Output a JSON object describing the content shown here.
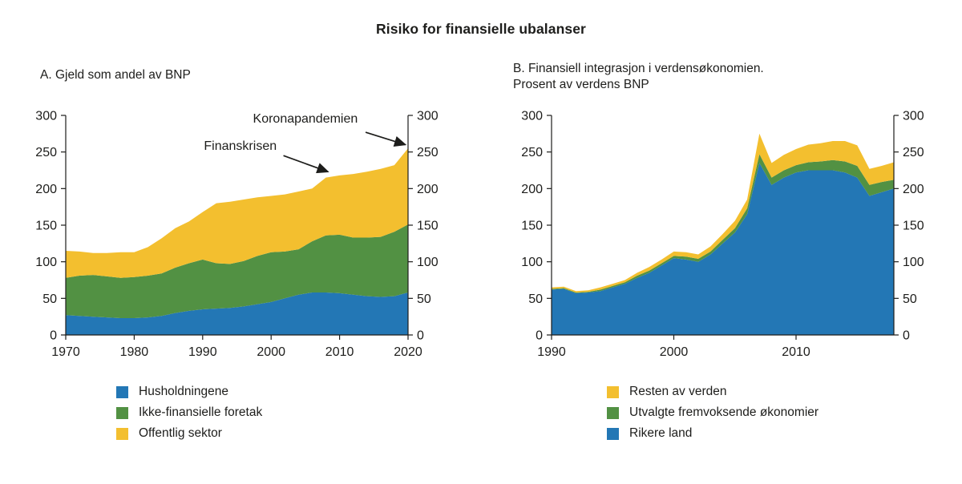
{
  "title": "Risiko for finansielle ubalanser",
  "panels": [
    {
      "lines": [
        "A. Gjeld som andel av BNP"
      ]
    },
    {
      "lines": [
        "B.  Finansiell integrasjon i verdensøkonomien.",
        "Prosent av verdens BNP"
      ]
    }
  ],
  "colors": {
    "blue": "#2377b5",
    "green": "#529143",
    "yellow": "#f3bf2f",
    "axis": "#1d1d1b"
  },
  "legends": [
    {
      "items": [
        {
          "label": "Husholdningene",
          "color": "blue"
        },
        {
          "label": "Ikke-finansielle foretak",
          "color": "green"
        },
        {
          "label": "Offentlig sektor",
          "color": "yellow"
        }
      ]
    },
    {
      "items": [
        {
          "label": "Resten av verden",
          "color": "yellow"
        },
        {
          "label": "Utvalgte fremvoksende økonomier",
          "color": "green"
        },
        {
          "label": "Rikere land",
          "color": "blue"
        }
      ]
    }
  ],
  "chart_data": [
    {
      "type": "area",
      "stacked": true,
      "title": "A. Gjeld som andel av BNP",
      "xlim": [
        1970,
        2020
      ],
      "ylim": [
        0,
        300
      ],
      "xticks": [
        1970,
        1980,
        1990,
        2000,
        2010,
        2020
      ],
      "yticks": [
        0,
        50,
        100,
        150,
        200,
        250,
        300
      ],
      "x": [
        1970,
        1972,
        1974,
        1976,
        1978,
        1980,
        1982,
        1984,
        1986,
        1988,
        1990,
        1992,
        1994,
        1996,
        1998,
        2000,
        2002,
        2004,
        2006,
        2008,
        2010,
        2012,
        2014,
        2016,
        2018,
        2020
      ],
      "series": [
        {
          "name": "Husholdningene",
          "color": "blue",
          "values": [
            27,
            26,
            25,
            24,
            23,
            23,
            24,
            26,
            30,
            33,
            35,
            36,
            37,
            39,
            42,
            45,
            50,
            55,
            58,
            58,
            57,
            55,
            53,
            52,
            53,
            58
          ]
        },
        {
          "name": "Ikke-finansielle foretak",
          "color": "green",
          "values": [
            51,
            55,
            57,
            56,
            55,
            56,
            57,
            58,
            62,
            65,
            68,
            62,
            60,
            62,
            66,
            68,
            64,
            62,
            70,
            78,
            80,
            78,
            80,
            82,
            88,
            93
          ]
        },
        {
          "name": "Offentlig sektor",
          "color": "yellow",
          "values": [
            37,
            33,
            30,
            32,
            35,
            34,
            39,
            48,
            54,
            57,
            65,
            82,
            85,
            84,
            80,
            77,
            78,
            79,
            72,
            79,
            81,
            87,
            90,
            93,
            91,
            104
          ]
        }
      ],
      "annotations": [
        {
          "label": "Finanskrisen",
          "label_x": 1995.5,
          "label_y": 253,
          "arrow_from": [
            2001.8,
            245
          ],
          "arrow_to": [
            2008.3,
            223
          ]
        },
        {
          "label": "Koronapandemien",
          "label_x": 2005,
          "label_y": 290,
          "arrow_from": [
            2013.8,
            277
          ],
          "arrow_to": [
            2019.6,
            260
          ]
        }
      ]
    },
    {
      "type": "area",
      "stacked": true,
      "title": "B. Finansiell integrasjon i verdensøkonomien. Prosent av verdens BNP",
      "xlim": [
        1990,
        2018
      ],
      "ylim": [
        0,
        300
      ],
      "xticks": [
        1990,
        2000,
        2010
      ],
      "yticks": [
        0,
        50,
        100,
        150,
        200,
        250,
        300
      ],
      "x": [
        1990,
        1991,
        1992,
        1993,
        1994,
        1995,
        1996,
        1997,
        1998,
        1999,
        2000,
        2001,
        2002,
        2003,
        2004,
        2005,
        2006,
        2007,
        2008,
        2009,
        2010,
        2011,
        2012,
        2013,
        2014,
        2015,
        2016,
        2017,
        2018
      ],
      "series": [
        {
          "name": "Rikere land",
          "color": "blue",
          "values": [
            62,
            63,
            57,
            58,
            60,
            65,
            70,
            78,
            85,
            95,
            105,
            103,
            100,
            110,
            125,
            140,
            165,
            235,
            205,
            215,
            222,
            225,
            225,
            225,
            222,
            215,
            190,
            195,
            200
          ]
        },
        {
          "name": "Utvalgte fremvoksende økonomier",
          "color": "green",
          "values": [
            1,
            1,
            1,
            1,
            2,
            2,
            2,
            3,
            3,
            3,
            3,
            4,
            4,
            4,
            5,
            6,
            8,
            12,
            10,
            10,
            10,
            11,
            12,
            14,
            15,
            16,
            15,
            14,
            12
          ]
        },
        {
          "name": "Resten av verden",
          "color": "yellow",
          "values": [
            2,
            2,
            2,
            2,
            3,
            3,
            3,
            4,
            5,
            5,
            6,
            6,
            6,
            7,
            8,
            10,
            12,
            28,
            20,
            21,
            22,
            24,
            25,
            26,
            28,
            28,
            22,
            22,
            24
          ]
        }
      ],
      "annotations": []
    }
  ]
}
